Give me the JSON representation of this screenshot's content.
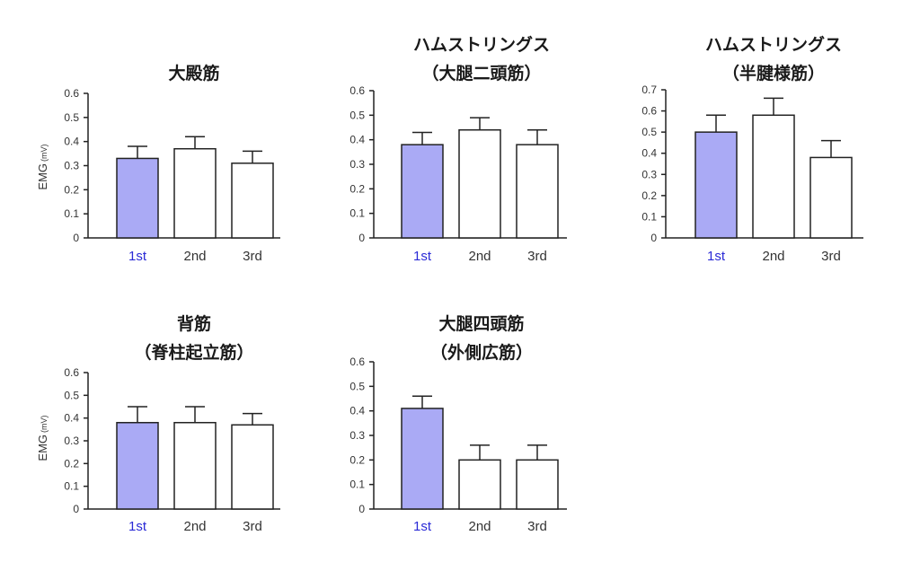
{
  "colors": {
    "highlight_bar": "#aaaaf5",
    "bar": "#ffffff",
    "highlight_label": "#2a2ad6",
    "text": "#333333"
  },
  "chart_data": [
    {
      "type": "bar",
      "title": [
        "大殿筋"
      ],
      "ylabel": "EMG",
      "ylabel_unit": "(mV)",
      "categories": [
        "1st",
        "2nd",
        "3rd"
      ],
      "values": [
        0.33,
        0.37,
        0.31
      ],
      "error": [
        0.05,
        0.05,
        0.05
      ],
      "ylim": [
        0,
        0.6
      ],
      "yticks": [
        "0",
        "0.1",
        "0.2",
        "0.3",
        "0.4",
        "0.5",
        "0.6"
      ]
    },
    {
      "type": "bar",
      "title": [
        "ハムストリングス",
        "（大腿二頭筋）"
      ],
      "categories": [
        "1st",
        "2nd",
        "3rd"
      ],
      "values": [
        0.38,
        0.44,
        0.38
      ],
      "error": [
        0.05,
        0.05,
        0.06
      ],
      "ylim": [
        0,
        0.6
      ],
      "yticks": [
        "0",
        "0.1",
        "0.2",
        "0.3",
        "0.4",
        "0.5",
        "0.6"
      ]
    },
    {
      "type": "bar",
      "title": [
        "ハムストリングス",
        "（半腱様筋）"
      ],
      "categories": [
        "1st",
        "2nd",
        "3rd"
      ],
      "values": [
        0.5,
        0.58,
        0.38
      ],
      "error": [
        0.08,
        0.08,
        0.08
      ],
      "ylim": [
        0,
        0.7
      ],
      "yticks": [
        "0",
        "0.1",
        "0.2",
        "0.3",
        "0.4",
        "0.5",
        "0.6",
        "0.7"
      ]
    },
    {
      "type": "bar",
      "title": [
        "背筋",
        "（脊柱起立筋）"
      ],
      "ylabel": "EMG",
      "ylabel_unit": "(mV)",
      "categories": [
        "1st",
        "2nd",
        "3rd"
      ],
      "values": [
        0.38,
        0.38,
        0.37
      ],
      "error": [
        0.07,
        0.07,
        0.05
      ],
      "ylim": [
        0,
        0.6
      ],
      "yticks": [
        "0",
        "0.1",
        "0.2",
        "0.3",
        "0.4",
        "0.5",
        "0.6"
      ]
    },
    {
      "type": "bar",
      "title": [
        "大腿四頭筋",
        "（外側広筋）"
      ],
      "categories": [
        "1st",
        "2nd",
        "3rd"
      ],
      "values": [
        0.41,
        0.2,
        0.2
      ],
      "error": [
        0.05,
        0.06,
        0.06
      ],
      "ylim": [
        0,
        0.6
      ],
      "yticks": [
        "0",
        "0.1",
        "0.2",
        "0.3",
        "0.4",
        "0.5",
        "0.6"
      ]
    }
  ]
}
